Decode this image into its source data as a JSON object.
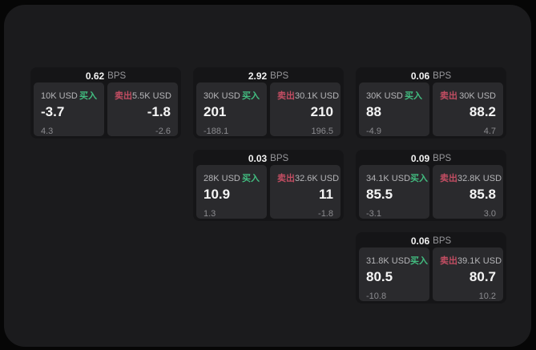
{
  "labels": {
    "buy": "买入",
    "sell": "卖出",
    "bps_unit": "BPS"
  },
  "colors": {
    "page_bg": "#060606",
    "container_bg": "#1b1b1d",
    "card_bg": "#151517",
    "panel_bg": "#2a2a2d",
    "buy_green": "#42bd80",
    "sell_red": "#c24d62"
  },
  "cards": [
    {
      "bps": "0.62",
      "buy": {
        "amount": "10K USD",
        "price": "-3.7",
        "sub": "4.3"
      },
      "sell": {
        "amount": "5.5K USD",
        "price": "-1.8",
        "sub": "-2.6"
      }
    },
    {
      "bps": "2.92",
      "buy": {
        "amount": "30K USD",
        "price": "201",
        "sub": "-188.1"
      },
      "sell": {
        "amount": "30.1K USD",
        "price": "210",
        "sub": "196.5"
      }
    },
    {
      "bps": "0.06",
      "buy": {
        "amount": "30K USD",
        "price": "88",
        "sub": "-4.9"
      },
      "sell": {
        "amount": "30K USD",
        "price": "88.2",
        "sub": "4.7"
      }
    },
    {
      "bps": "0.03",
      "buy": {
        "amount": "28K USD",
        "price": "10.9",
        "sub": "1.3"
      },
      "sell": {
        "amount": "32.6K USD",
        "price": "11",
        "sub": "-1.8"
      }
    },
    {
      "bps": "0.09",
      "buy": {
        "amount": "34.1K USD",
        "price": "85.5",
        "sub": "-3.1"
      },
      "sell": {
        "amount": "32.8K USD",
        "price": "85.8",
        "sub": "3.0"
      }
    },
    {
      "bps": "0.06",
      "buy": {
        "amount": "31.8K USD",
        "price": "80.5",
        "sub": "-10.8"
      },
      "sell": {
        "amount": "39.1K USD",
        "price": "80.7",
        "sub": "10.2"
      }
    }
  ]
}
